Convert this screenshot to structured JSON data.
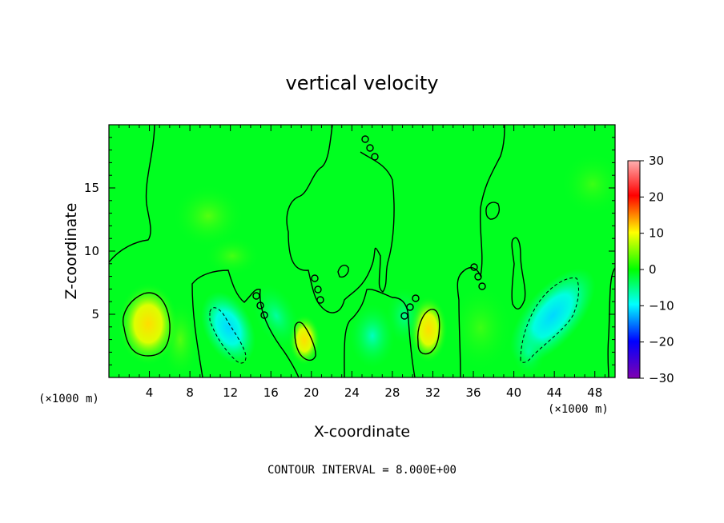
{
  "chart_data": {
    "type": "heatmap",
    "title": "vertical velocity",
    "xlabel": "X-coordinate",
    "ylabel": "Z-coordinate",
    "x_unit": "(×1000 m)",
    "footer": "CONTOUR INTERVAL = 8.000E+00",
    "xlim": [
      0,
      50
    ],
    "ylim": [
      0,
      20
    ],
    "x_ticks": [
      4,
      8,
      12,
      16,
      20,
      24,
      28,
      32,
      36,
      40,
      44,
      48
    ],
    "y_ticks": [
      5,
      10,
      15
    ],
    "colorbar": {
      "range": [
        -30,
        30
      ],
      "ticks": [
        30,
        20,
        10,
        0,
        -10,
        -20,
        -30
      ]
    },
    "contour_interval": 8,
    "features": [
      {
        "x": 3.8,
        "z": 4.6,
        "w": 10,
        "label": "updraft"
      },
      {
        "x": 19,
        "z": 3.0,
        "w": 6,
        "label": "updraft"
      },
      {
        "x": 31.5,
        "z": 3.8,
        "w": 9,
        "label": "updraft"
      },
      {
        "x": 12,
        "z": 3.5,
        "w": -6,
        "label": "downdraft"
      },
      {
        "x": 44,
        "z": 4.0,
        "w": -9,
        "label": "downdraft"
      },
      {
        "x": 26,
        "z": 3.0,
        "w": -4,
        "label": "downdraft"
      }
    ]
  },
  "colors": {
    "background_field": "#00ff20",
    "updraft": "#fff000",
    "downdraft": "#00ffff"
  }
}
